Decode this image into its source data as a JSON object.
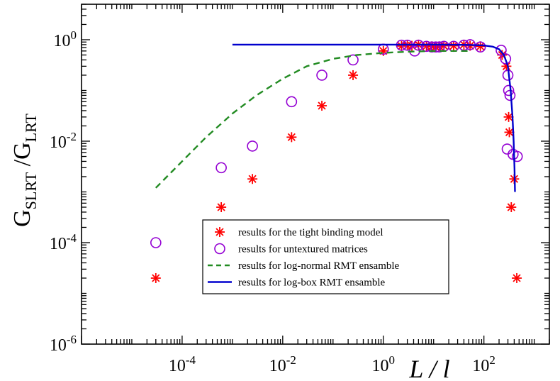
{
  "chart_data": {
    "type": "scatter",
    "x_scale": "log",
    "y_scale": "log",
    "xlim": [
      1e-06,
      2000
    ],
    "ylim": [
      1e-06,
      5
    ],
    "x_axis_label": "L / l",
    "y_axis_label": {
      "base": "G",
      "sub1": "SLRT",
      "divider": " /G",
      "sub2": "LRT"
    },
    "x_ticks": [
      {
        "value": 0.0001,
        "base": "10",
        "exp": "-4"
      },
      {
        "value": 0.01,
        "base": "10",
        "exp": "-2"
      },
      {
        "value": 1,
        "base": "10",
        "exp": "0"
      },
      {
        "value": 100,
        "base": "10",
        "exp": "2"
      }
    ],
    "y_ticks": [
      {
        "value": 1e-06,
        "base": "10",
        "exp": "-6"
      },
      {
        "value": 0.0001,
        "base": "10",
        "exp": "-4"
      },
      {
        "value": 0.01,
        "base": "10",
        "exp": "-2"
      },
      {
        "value": 1,
        "base": "10",
        "exp": "0"
      }
    ],
    "legend_position": "lower-center",
    "series": [
      {
        "name": "results for the tight binding model",
        "marker": "asterisk",
        "color": "#ff0000",
        "points": [
          [
            3e-05,
            2e-05
          ],
          [
            0.0006,
            0.0005
          ],
          [
            0.0025,
            0.0018
          ],
          [
            0.015,
            0.012
          ],
          [
            0.06,
            0.05
          ],
          [
            0.25,
            0.2
          ],
          [
            1.0,
            0.6
          ],
          [
            2.3,
            0.75
          ],
          [
            3.0,
            0.76
          ],
          [
            3.7,
            0.76
          ],
          [
            5.0,
            0.8
          ],
          [
            7.2,
            0.75
          ],
          [
            9.2,
            0.74
          ],
          [
            11.0,
            0.72
          ],
          [
            13.0,
            0.74
          ],
          [
            16.0,
            0.76
          ],
          [
            25.0,
            0.76
          ],
          [
            40.0,
            0.8
          ],
          [
            53.0,
            0.76
          ],
          [
            85.0,
            0.74
          ],
          [
            230.0,
            0.5
          ],
          [
            280.0,
            0.3
          ],
          [
            310.0,
            0.03
          ],
          [
            320.0,
            0.015
          ],
          [
            350.0,
            0.0005
          ],
          [
            400.0,
            0.0018
          ],
          [
            450.0,
            2e-05
          ]
        ]
      },
      {
        "name": "results for untextured matrices",
        "marker": "circle",
        "color": "#9400d3",
        "points": [
          [
            3e-05,
            0.0001
          ],
          [
            0.0006,
            0.003
          ],
          [
            0.0025,
            0.008
          ],
          [
            0.015,
            0.06
          ],
          [
            0.06,
            0.2
          ],
          [
            0.25,
            0.4
          ],
          [
            1.0,
            0.65
          ],
          [
            2.3,
            0.78
          ],
          [
            3.0,
            0.78
          ],
          [
            4.2,
            0.6
          ],
          [
            5.0,
            0.78
          ],
          [
            7.2,
            0.74
          ],
          [
            9.2,
            0.72
          ],
          [
            11.0,
            0.72
          ],
          [
            13.0,
            0.72
          ],
          [
            16.0,
            0.74
          ],
          [
            25.0,
            0.74
          ],
          [
            40.0,
            0.78
          ],
          [
            53.0,
            0.8
          ],
          [
            85.0,
            0.72
          ],
          [
            220.0,
            0.62
          ],
          [
            270.0,
            0.42
          ],
          [
            300.0,
            0.2
          ],
          [
            310.0,
            0.1
          ],
          [
            330.0,
            0.08
          ],
          [
            290.0,
            0.007
          ],
          [
            380.0,
            0.0055
          ],
          [
            460.0,
            0.005
          ]
        ]
      },
      {
        "name": "results for log-normal RMT ensamble",
        "line_style": "dashed",
        "color": "#228b22",
        "points": [
          [
            3e-05,
            0.0012
          ],
          [
            0.0001,
            0.004
          ],
          [
            0.0003,
            0.012
          ],
          [
            0.001,
            0.035
          ],
          [
            0.003,
            0.08
          ],
          [
            0.01,
            0.17
          ],
          [
            0.03,
            0.3
          ],
          [
            0.1,
            0.42
          ],
          [
            0.3,
            0.5
          ],
          [
            1.0,
            0.55
          ],
          [
            3.0,
            0.58
          ],
          [
            10.0,
            0.6
          ],
          [
            30.0,
            0.6
          ],
          [
            55.0,
            0.6
          ]
        ]
      },
      {
        "name": "results for log-box RMT ensamble",
        "line_style": "solid",
        "color": "#0000cd",
        "points": [
          [
            0.001,
            0.8
          ],
          [
            0.01,
            0.8
          ],
          [
            0.1,
            0.8
          ],
          [
            1.0,
            0.8
          ],
          [
            10.0,
            0.8
          ],
          [
            50.0,
            0.79
          ],
          [
            100.0,
            0.77
          ],
          [
            150.0,
            0.73
          ],
          [
            200.0,
            0.65
          ],
          [
            250.0,
            0.5
          ],
          [
            300.0,
            0.3
          ],
          [
            340.0,
            0.1
          ],
          [
            370.0,
            0.03
          ],
          [
            390.0,
            0.01
          ],
          [
            405.0,
            0.003
          ],
          [
            415.0,
            0.001
          ]
        ]
      }
    ]
  }
}
